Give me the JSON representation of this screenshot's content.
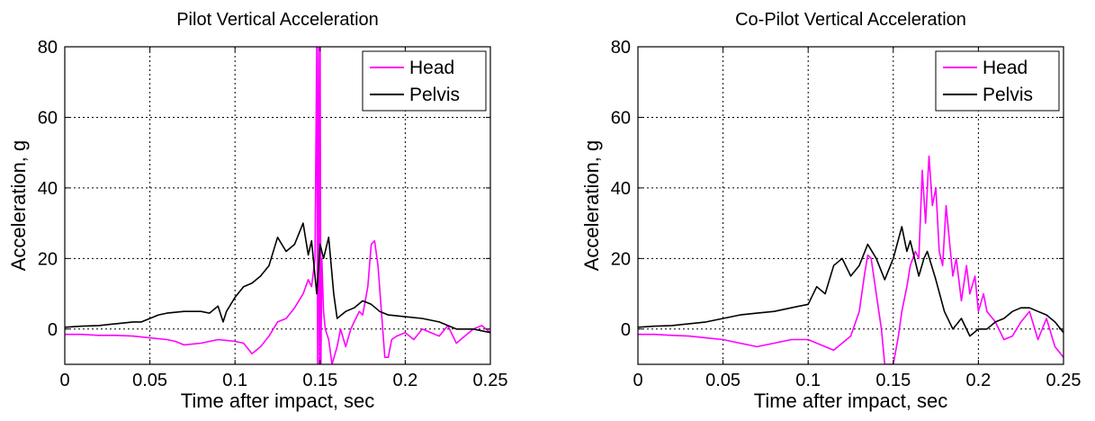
{
  "colors": {
    "head": "#ff00ff",
    "pelvis": "#000000",
    "grid": "#000000",
    "background": "#ffffff"
  },
  "chart_data": [
    {
      "type": "line",
      "title": "Pilot Vertical Acceleration",
      "xlabel": "Time after impact, sec",
      "ylabel": "Acceleration, g",
      "xlim": [
        0,
        0.25
      ],
      "ylim": [
        -10,
        80
      ],
      "xticks": [
        0,
        0.05,
        0.1,
        0.15,
        0.2,
        0.25
      ],
      "xtick_labels": [
        "0",
        "0.05",
        "0.1",
        "0.15",
        "0.2",
        "0.25"
      ],
      "yticks": [
        0,
        20,
        40,
        60,
        80
      ],
      "ytick_labels": [
        "0",
        "20",
        "40",
        "60",
        "80"
      ],
      "grid": true,
      "legend": "top-right",
      "series": [
        {
          "name": "Head",
          "color": "#ff00ff",
          "x": [
            0,
            0.01,
            0.02,
            0.03,
            0.04,
            0.05,
            0.06,
            0.065,
            0.07,
            0.08,
            0.09,
            0.1,
            0.105,
            0.11,
            0.115,
            0.12,
            0.125,
            0.13,
            0.135,
            0.14,
            0.143,
            0.145,
            0.147,
            0.148,
            0.1485,
            0.149,
            0.1495,
            0.15,
            0.1505,
            0.151,
            0.152,
            0.153,
            0.155,
            0.157,
            0.16,
            0.162,
            0.165,
            0.168,
            0.17,
            0.173,
            0.175,
            0.178,
            0.18,
            0.182,
            0.184,
            0.186,
            0.188,
            0.19,
            0.192,
            0.195,
            0.2,
            0.205,
            0.21,
            0.215,
            0.22,
            0.225,
            0.23,
            0.235,
            0.24,
            0.245,
            0.25
          ],
          "y": [
            -1.5,
            -1.5,
            -1.8,
            -1.8,
            -2,
            -2.5,
            -3,
            -3.5,
            -4.5,
            -4,
            -3,
            -3.5,
            -4,
            -7,
            -5,
            -2,
            2,
            3,
            6,
            10,
            14,
            12,
            20,
            80,
            -10,
            80,
            -10,
            80,
            -10,
            20,
            5,
            0,
            -3,
            -10,
            -5,
            0,
            -5,
            0,
            2,
            5,
            4,
            12,
            24,
            25,
            18,
            5,
            -8,
            -8,
            -3,
            -2,
            -1,
            -3,
            0,
            -1,
            -2,
            1,
            -4,
            -2,
            0,
            1,
            -1
          ]
        },
        {
          "name": "Pelvis",
          "color": "#000000",
          "x": [
            0,
            0.01,
            0.02,
            0.03,
            0.04,
            0.045,
            0.05,
            0.055,
            0.06,
            0.07,
            0.08,
            0.085,
            0.09,
            0.093,
            0.095,
            0.1,
            0.105,
            0.11,
            0.115,
            0.12,
            0.125,
            0.13,
            0.135,
            0.14,
            0.143,
            0.145,
            0.148,
            0.15,
            0.152,
            0.155,
            0.158,
            0.16,
            0.165,
            0.17,
            0.175,
            0.18,
            0.185,
            0.19,
            0.2,
            0.21,
            0.22,
            0.23,
            0.24,
            0.25
          ],
          "y": [
            0.5,
            0.8,
            1,
            1.5,
            2,
            2,
            3,
            4,
            4.5,
            5,
            5,
            4.5,
            6.5,
            2,
            5,
            9,
            12,
            13,
            15,
            18,
            26,
            22,
            24,
            30,
            21,
            25,
            10,
            24,
            20,
            26,
            10,
            3,
            5,
            6,
            8,
            7,
            5,
            4,
            3.5,
            3,
            2,
            0,
            0,
            -1
          ]
        }
      ]
    },
    {
      "type": "line",
      "title": "Co-Pilot Vertical Acceleration",
      "xlabel": "Time after impact, sec",
      "ylabel": "Acceleration, g",
      "xlim": [
        0,
        0.25
      ],
      "ylim": [
        -10,
        80
      ],
      "xticks": [
        0,
        0.05,
        0.1,
        0.15,
        0.2,
        0.25
      ],
      "xtick_labels": [
        "0",
        "0.05",
        "0.1",
        "0.15",
        "0.2",
        "0.25"
      ],
      "yticks": [
        0,
        20,
        40,
        60,
        80
      ],
      "ytick_labels": [
        "0",
        "20",
        "40",
        "60",
        "80"
      ],
      "grid": true,
      "legend": "top-right",
      "series": [
        {
          "name": "Head",
          "color": "#ff00ff",
          "x": [
            0,
            0.01,
            0.02,
            0.03,
            0.04,
            0.05,
            0.06,
            0.07,
            0.08,
            0.09,
            0.1,
            0.11,
            0.115,
            0.12,
            0.125,
            0.13,
            0.133,
            0.135,
            0.137,
            0.14,
            0.143,
            0.145,
            0.147,
            0.15,
            0.153,
            0.155,
            0.158,
            0.16,
            0.163,
            0.165,
            0.167,
            0.169,
            0.171,
            0.173,
            0.175,
            0.177,
            0.179,
            0.181,
            0.183,
            0.185,
            0.187,
            0.19,
            0.193,
            0.195,
            0.198,
            0.2,
            0.203,
            0.205,
            0.21,
            0.215,
            0.22,
            0.225,
            0.23,
            0.235,
            0.24,
            0.245,
            0.25
          ],
          "y": [
            -1.5,
            -1.5,
            -1.8,
            -2,
            -2.5,
            -3,
            -4,
            -5,
            -4,
            -3,
            -3,
            -5,
            -6,
            -4,
            -2,
            5,
            15,
            21,
            20,
            10,
            0,
            -10,
            -10,
            -10,
            -2,
            5,
            12,
            18,
            22,
            20,
            45,
            30,
            49,
            35,
            40,
            22,
            18,
            35,
            25,
            15,
            20,
            8,
            18,
            10,
            15,
            5,
            10,
            5,
            2,
            -3,
            -2,
            2,
            5,
            -3,
            3,
            -5,
            -8
          ]
        },
        {
          "name": "Pelvis",
          "color": "#000000",
          "x": [
            0,
            0.01,
            0.02,
            0.03,
            0.04,
            0.05,
            0.06,
            0.07,
            0.08,
            0.09,
            0.1,
            0.105,
            0.11,
            0.115,
            0.12,
            0.125,
            0.13,
            0.135,
            0.14,
            0.145,
            0.15,
            0.155,
            0.158,
            0.16,
            0.165,
            0.168,
            0.17,
            0.175,
            0.18,
            0.185,
            0.19,
            0.195,
            0.2,
            0.205,
            0.21,
            0.215,
            0.22,
            0.225,
            0.23,
            0.235,
            0.24,
            0.245,
            0.25
          ],
          "y": [
            0.5,
            0.8,
            1,
            1.5,
            2,
            3,
            4,
            4.5,
            5,
            6,
            7,
            12,
            10,
            18,
            20,
            15,
            18,
            24,
            20,
            14,
            20,
            29,
            22,
            25,
            15,
            20,
            22,
            14,
            5,
            0,
            3,
            -2,
            0,
            0,
            2,
            3,
            5,
            6,
            6,
            5,
            4,
            2,
            -1
          ]
        }
      ]
    }
  ]
}
